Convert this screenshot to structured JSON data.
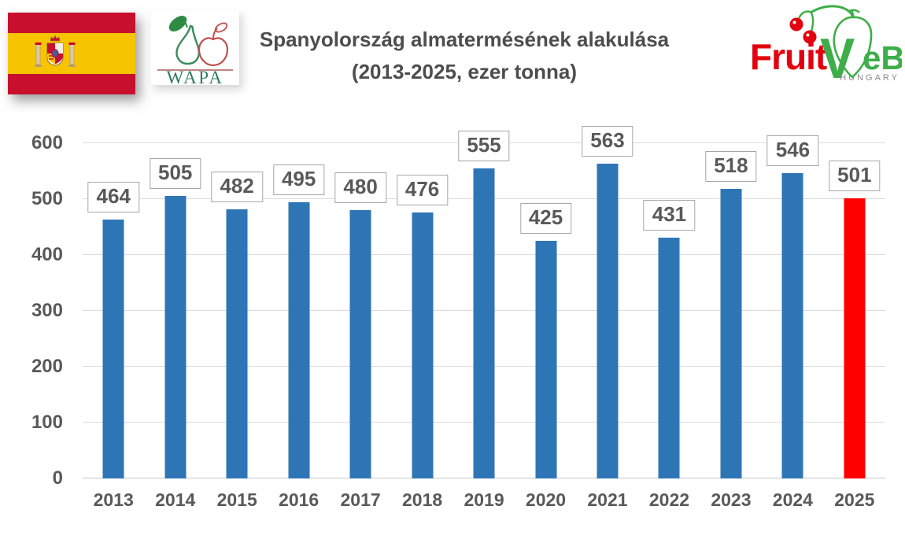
{
  "header": {
    "title_line1": "Spanyolország almatermésének alakulása",
    "title_line2": "(2013-2025, ezer tonna)",
    "wapa_text": "WAPA",
    "fruitveb_fruit": "Fruit",
    "fruitveb_v": "V",
    "fruitveb_eb": "eB",
    "fruitveb_country": "HUNGARY"
  },
  "chart_data": {
    "type": "bar",
    "title": "Spanyolország almatermésének alakulása (2013-2025, ezer tonna)",
    "unit": "ezer tonna",
    "categories": [
      "2013",
      "2014",
      "2015",
      "2016",
      "2017",
      "2018",
      "2019",
      "2020",
      "2021",
      "2022",
      "2023",
      "2024",
      "2025"
    ],
    "values": [
      464,
      505,
      482,
      495,
      480,
      476,
      555,
      425,
      563,
      431,
      518,
      546,
      501
    ],
    "ylim": [
      0,
      600
    ],
    "yticks": [
      0,
      100,
      200,
      300,
      400,
      500,
      600
    ],
    "grid": true,
    "legend": "none",
    "bar_color": "#2E75B6",
    "highlight_color": "#FF0000",
    "highlight_index": 12,
    "label_text_color": "#595959"
  }
}
